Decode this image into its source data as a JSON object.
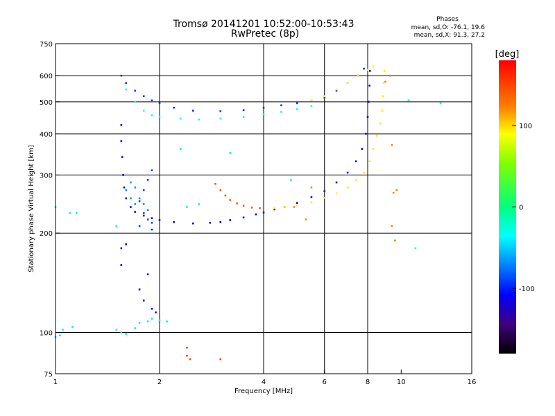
{
  "chart_data": {
    "type": "scatter",
    "title": "Tromsø 20141201 10:52:00-10:53:43",
    "subtitle": "RwPretec (8p)",
    "stats": {
      "header": "Phases",
      "line1": "mean, sd,O: -76.1, 19.6",
      "line2": "mean, sd,X:  91.3, 27.2"
    },
    "xlabel": "Frequency [MHz]",
    "ylabel": "Stationary phase Virtual Height [km]",
    "x_scale": "log2",
    "y_scale": "log",
    "xlim": [
      1,
      16
    ],
    "ylim": [
      75,
      750
    ],
    "x_ticks": [
      1,
      2,
      4,
      6,
      8,
      10,
      16
    ],
    "x_tick_labels": [
      "1",
      "2",
      "4",
      "6",
      "8",
      "10",
      "16"
    ],
    "x_grid": [
      2,
      4,
      6,
      8
    ],
    "y_ticks": [
      75,
      100,
      200,
      300,
      400,
      500,
      600,
      750
    ],
    "y_tick_labels": [
      "75",
      "100",
      "200",
      "300",
      "400",
      "500",
      "600",
      "750"
    ],
    "y_grid": [
      100,
      200,
      300,
      400,
      500,
      600
    ],
    "grid": true,
    "colorbar": {
      "label": "[deg]",
      "range": [
        -180,
        180
      ],
      "ticks": [
        100,
        0,
        -100
      ],
      "tick_labels": [
        "100",
        "0",
        "-100"
      ]
    },
    "series": [
      {
        "points": [
          [
            1.55,
            600
          ],
          [
            1.6,
            570
          ],
          [
            1.7,
            540
          ],
          [
            1.8,
            520
          ],
          [
            1.9,
            505
          ],
          [
            2.0,
            495
          ],
          [
            2.2,
            480
          ],
          [
            2.5,
            470
          ],
          [
            3.0,
            468
          ],
          [
            3.5,
            472
          ],
          [
            4.0,
            480
          ],
          [
            4.5,
            488
          ],
          [
            5.0,
            495
          ],
          [
            5.5,
            505
          ],
          [
            6.0,
            515
          ],
          [
            6.5,
            540
          ],
          [
            7.0,
            570
          ],
          [
            7.5,
            600
          ],
          [
            7.8,
            630
          ]
        ],
        "phase": -95
      },
      {
        "points": [
          [
            1.6,
            545
          ],
          [
            1.7,
            500
          ],
          [
            1.8,
            470
          ],
          [
            1.9,
            455
          ],
          [
            2.0,
            450
          ],
          [
            2.3,
            445
          ],
          [
            2.6,
            442
          ],
          [
            3.0,
            445
          ],
          [
            3.5,
            450
          ],
          [
            4.0,
            458
          ],
          [
            4.5,
            466
          ],
          [
            5.0,
            475
          ],
          [
            5.5,
            485
          ]
        ],
        "phase": -35
      },
      {
        "points": [
          [
            1.55,
            425
          ],
          [
            1.55,
            380
          ],
          [
            1.56,
            340
          ],
          [
            1.57,
            300
          ],
          [
            1.58,
            275
          ],
          [
            1.6,
            255
          ],
          [
            1.65,
            240
          ],
          [
            1.7,
            232
          ],
          [
            1.8,
            226
          ],
          [
            1.9,
            222
          ],
          [
            2.0,
            219
          ],
          [
            2.2,
            216
          ],
          [
            2.5,
            214
          ],
          [
            2.8,
            215
          ],
          [
            3.0,
            216
          ],
          [
            3.2,
            219
          ],
          [
            3.5,
            223
          ],
          [
            3.8,
            228
          ],
          [
            4.0,
            231
          ],
          [
            4.3,
            236
          ],
          [
            4.6,
            240
          ],
          [
            5.0,
            247
          ],
          [
            5.5,
            257
          ],
          [
            6.0,
            268
          ],
          [
            6.5,
            285
          ],
          [
            7.0,
            305
          ],
          [
            7.4,
            330
          ],
          [
            7.7,
            360
          ],
          [
            7.9,
            400
          ],
          [
            8.0,
            450
          ],
          [
            8.05,
            500
          ],
          [
            8.1,
            560
          ],
          [
            8.12,
            620
          ]
        ],
        "phase": -110
      },
      {
        "points": [
          [
            1.75,
            250
          ],
          [
            1.8,
            270
          ],
          [
            1.85,
            290
          ],
          [
            1.9,
            310
          ],
          [
            1.8,
            230
          ],
          [
            1.85,
            220
          ],
          [
            1.9,
            215
          ],
          [
            1.75,
            210
          ],
          [
            1.9,
            205
          ]
        ],
        "phase": -90
      },
      {
        "points": [
          [
            1.6,
            270
          ],
          [
            1.65,
            255
          ],
          [
            1.7,
            245
          ],
          [
            1.75,
            255
          ],
          [
            1.7,
            275
          ],
          [
            1.8,
            245
          ],
          [
            1.85,
            235
          ],
          [
            1.65,
            285
          ]
        ],
        "phase": -65
      },
      {
        "points": [
          [
            2.9,
            282
          ],
          [
            3.0,
            270
          ],
          [
            3.1,
            260
          ],
          [
            3.2,
            252
          ],
          [
            3.35,
            246
          ],
          [
            3.5,
            242
          ],
          [
            3.7,
            239
          ],
          [
            3.9,
            238
          ]
        ],
        "phase": 140
      },
      {
        "points": [
          [
            4.3,
            238
          ],
          [
            4.6,
            240
          ],
          [
            5.0,
            243
          ],
          [
            5.5,
            248
          ],
          [
            6.0,
            256
          ],
          [
            6.5,
            264
          ],
          [
            7.0,
            275
          ],
          [
            7.4,
            290
          ],
          [
            7.8,
            305
          ],
          [
            8.1,
            330
          ],
          [
            8.3,
            360
          ],
          [
            8.5,
            395
          ],
          [
            8.7,
            430
          ],
          [
            8.8,
            470
          ],
          [
            8.85,
            520
          ],
          [
            8.9,
            570
          ],
          [
            8.95,
            620
          ]
        ],
        "phase": 95
      },
      {
        "points": [
          [
            5.5,
            505
          ],
          [
            6.0,
            520
          ],
          [
            6.5,
            545
          ],
          [
            7.0,
            570
          ],
          [
            7.5,
            600
          ],
          [
            8.0,
            625
          ],
          [
            8.3,
            640
          ]
        ],
        "phase": 85
      },
      {
        "points": [
          [
            1.55,
            180
          ],
          [
            1.55,
            160
          ],
          [
            1.6,
            185
          ],
          [
            1.75,
            135
          ],
          [
            1.8,
            125
          ],
          [
            1.85,
            150
          ],
          [
            1.9,
            118
          ],
          [
            1.95,
            115
          ]
        ],
        "phase": -110
      },
      {
        "points": [
          [
            1.5,
            102
          ],
          [
            1.55,
            100
          ],
          [
            1.6,
            99
          ],
          [
            1.7,
            103
          ],
          [
            1.75,
            107
          ],
          [
            1.85,
            108
          ],
          [
            1.9,
            110
          ],
          [
            2.0,
            109
          ],
          [
            2.1,
            108
          ],
          [
            1.0,
            97
          ],
          [
            1.03,
            98
          ],
          [
            1.05,
            102
          ],
          [
            1.12,
            104
          ]
        ],
        "phase": -40
      },
      {
        "points": [
          [
            2.4,
            85
          ],
          [
            2.4,
            90
          ],
          [
            2.45,
            83
          ],
          [
            3.0,
            83
          ]
        ],
        "phase": 150
      },
      {
        "points": [
          [
            9.0,
            575
          ],
          [
            9.3,
            600
          ],
          [
            9.4,
            370
          ],
          [
            9.5,
            265
          ],
          [
            9.6,
            190
          ],
          [
            9.7,
            270
          ],
          [
            9.4,
            210
          ],
          [
            4.9,
            240
          ],
          [
            5.5,
            275
          ],
          [
            5.3,
            220
          ]
        ],
        "phase": 120
      },
      {
        "points": [
          [
            1.0,
            240
          ],
          [
            1.1,
            230
          ],
          [
            1.15,
            230
          ],
          [
            1.5,
            210
          ],
          [
            2.3,
            360
          ],
          [
            3.2,
            350
          ],
          [
            4.8,
            290
          ],
          [
            11.0,
            180
          ],
          [
            10.5,
            505
          ],
          [
            13.0,
            495
          ],
          [
            2.4,
            240
          ],
          [
            2.6,
            245
          ]
        ],
        "phase": -20
      }
    ]
  }
}
